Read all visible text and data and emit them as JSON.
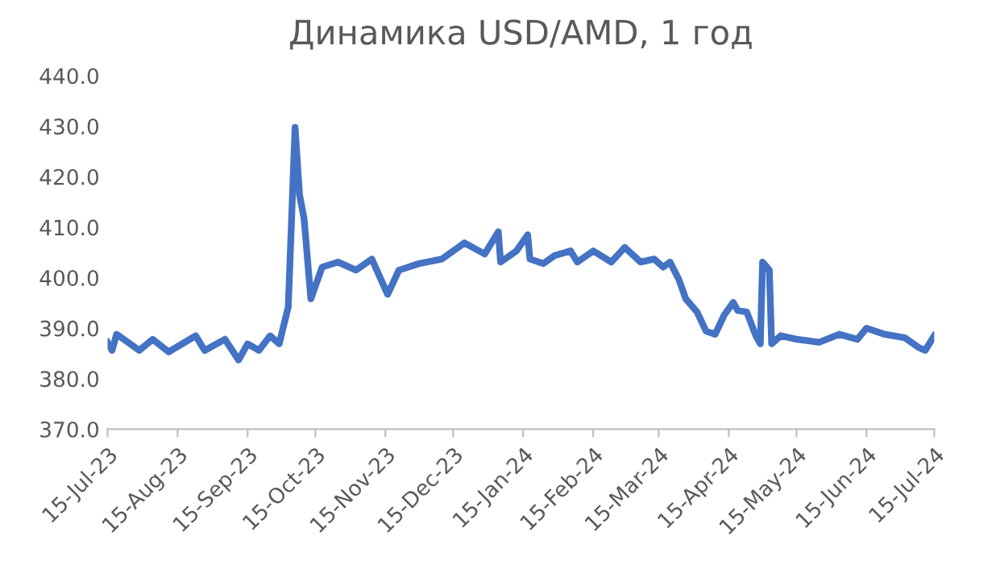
{
  "chart_data": {
    "type": "line",
    "title": "Динамика USD/AMD, 1 год",
    "x": [
      "2023-07-15",
      "2023-07-17",
      "2023-07-19",
      "2023-07-24",
      "2023-07-29",
      "2023-08-04",
      "2023-08-11",
      "2023-08-23",
      "2023-08-27",
      "2023-09-05",
      "2023-09-11",
      "2023-09-15",
      "2023-09-20",
      "2023-09-25",
      "2023-09-29",
      "2023-10-03",
      "2023-10-06",
      "2023-10-08",
      "2023-10-10",
      "2023-10-13",
      "2023-10-18",
      "2023-10-25",
      "2023-11-02",
      "2023-11-09",
      "2023-11-16",
      "2023-11-21",
      "2023-11-30",
      "2023-12-10",
      "2023-12-20",
      "2023-12-29",
      "2024-01-04",
      "2024-01-05",
      "2024-01-12",
      "2024-01-17",
      "2024-01-18",
      "2024-01-24",
      "2024-01-29",
      "2024-02-05",
      "2024-02-08",
      "2024-02-15",
      "2024-02-23",
      "2024-02-29",
      "2024-03-07",
      "2024-03-13",
      "2024-03-17",
      "2024-03-20",
      "2024-03-24",
      "2024-03-27",
      "2024-04-01",
      "2024-04-05",
      "2024-04-09",
      "2024-04-13",
      "2024-04-17",
      "2024-04-19",
      "2024-04-23",
      "2024-04-27",
      "2024-04-29",
      "2024-04-30",
      "2024-05-03",
      "2024-05-04",
      "2024-05-08",
      "2024-05-15",
      "2024-05-25",
      "2024-06-03",
      "2024-06-11",
      "2024-06-15",
      "2024-06-23",
      "2024-07-02",
      "2024-07-08",
      "2024-07-11",
      "2024-07-15"
    ],
    "series": [
      {
        "color": "#4472c4",
        "values": [
          387.2,
          385.6,
          388.8,
          387.2,
          385.6,
          387.8,
          385.3,
          388.5,
          385.6,
          387.8,
          383.7,
          386.9,
          385.6,
          388.5,
          386.9,
          394.2,
          429.8,
          416.4,
          411.7,
          395.8,
          402.1,
          403.1,
          401.5,
          403.7,
          396.7,
          401.5,
          402.8,
          403.7,
          406.9,
          404.7,
          409.1,
          403.1,
          405.3,
          408.5,
          403.7,
          402.8,
          404.4,
          405.3,
          403.1,
          405.3,
          403.1,
          406.0,
          403.1,
          403.7,
          402.1,
          403.1,
          399.6,
          395.8,
          393.2,
          389.4,
          388.8,
          392.6,
          395.1,
          393.5,
          393.2,
          388.5,
          386.9,
          403.1,
          401.5,
          386.9,
          388.5,
          387.8,
          387.2,
          388.8,
          387.8,
          390.0,
          388.8,
          388.1,
          386.2,
          385.6,
          388.5
        ]
      }
    ],
    "xlim": [
      "2023-07-15",
      "2024-07-15"
    ],
    "xticks": [
      {
        "value": "2023-07-15",
        "label": "15-Jul-23"
      },
      {
        "value": "2023-08-15",
        "label": "15-Aug-23"
      },
      {
        "value": "2023-09-15",
        "label": "15-Sep-23"
      },
      {
        "value": "2023-10-15",
        "label": "15-Oct-23"
      },
      {
        "value": "2023-11-15",
        "label": "15-Nov-23"
      },
      {
        "value": "2023-12-15",
        "label": "15-Dec-23"
      },
      {
        "value": "2024-01-15",
        "label": "15-Jan-24"
      },
      {
        "value": "2024-02-15",
        "label": "15-Feb-24"
      },
      {
        "value": "2024-03-15",
        "label": "15-Mar-24"
      },
      {
        "value": "2024-04-15",
        "label": "15-Apr-24"
      },
      {
        "value": "2024-05-15",
        "label": "15-May-24"
      },
      {
        "value": "2024-06-15",
        "label": "15-Jun-24"
      },
      {
        "value": "2024-07-15",
        "label": "15-Jul-24"
      }
    ],
    "ylim": [
      370,
      440
    ],
    "yticks": [
      {
        "value": 370,
        "label": "370.0"
      },
      {
        "value": 380,
        "label": "380.0"
      },
      {
        "value": 390,
        "label": "390.0"
      },
      {
        "value": 400,
        "label": "400.0"
      },
      {
        "value": 410,
        "label": "410.0"
      },
      {
        "value": 420,
        "label": "420.0"
      },
      {
        "value": 430,
        "label": "430.0"
      },
      {
        "value": 440,
        "label": "440.0"
      }
    ],
    "grid": false,
    "legend": false,
    "marker": "none",
    "line_style": "solid"
  }
}
